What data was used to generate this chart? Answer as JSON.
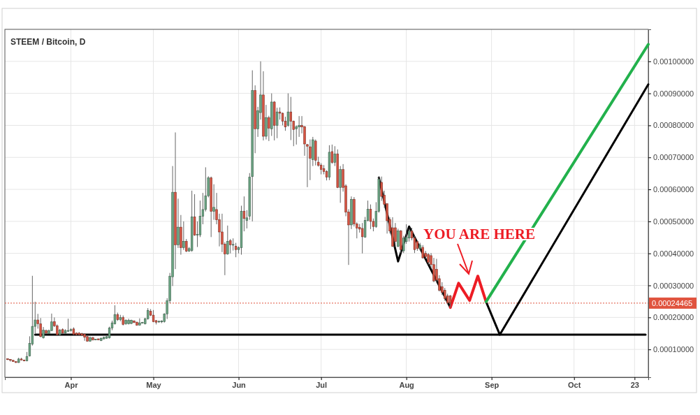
{
  "chart_data": {
    "type": "candlestick",
    "title": "STEEM / Bitcoin, D",
    "x": [
      "--03-09",
      "--03-10",
      "--03-11",
      "--03-12",
      "--03-13",
      "--03-14",
      "--03-15",
      "--03-16",
      "--03-17",
      "--03-18",
      "--03-19",
      "--03-20",
      "--03-21",
      "--03-22",
      "--03-23",
      "--03-24",
      "--03-25",
      "--03-26",
      "--03-27",
      "--03-28",
      "--03-29",
      "--03-30",
      "--03-31",
      "--04-01",
      "--04-02",
      "--04-03",
      "--04-04",
      "--04-05",
      "--04-06",
      "--04-07",
      "--04-08",
      "--04-09",
      "--04-10",
      "--04-11",
      "--04-12",
      "--04-13",
      "--04-14",
      "--04-15",
      "--04-16",
      "--04-17",
      "--04-18",
      "--04-19",
      "--04-20",
      "--04-21",
      "--04-22",
      "--04-23",
      "--04-24",
      "--04-25",
      "--04-26",
      "--04-27",
      "--04-28",
      "--04-29",
      "--04-30",
      "--05-01",
      "--05-02",
      "--05-03",
      "--05-04",
      "--05-05",
      "--05-06",
      "--05-07",
      "--05-08",
      "--05-09",
      "--05-10",
      "--05-11",
      "--05-12",
      "--05-13",
      "--05-14",
      "--05-15",
      "--05-16",
      "--05-17",
      "--05-18",
      "--05-19",
      "--05-20",
      "--05-21",
      "--05-22",
      "--05-23",
      "--05-24",
      "--05-25",
      "--05-26",
      "--05-27",
      "--05-28",
      "--05-29",
      "--05-30",
      "--05-31",
      "--06-01",
      "--06-02",
      "--06-03",
      "--06-04",
      "--06-05",
      "--06-06",
      "--06-07",
      "--06-08",
      "--06-09",
      "--06-10",
      "--06-11",
      "--06-12",
      "--06-13",
      "--06-14",
      "--06-15",
      "--06-16",
      "--06-17",
      "--06-18",
      "--06-19",
      "--06-20",
      "--06-21",
      "--06-22",
      "--06-23",
      "--06-24",
      "--06-25",
      "--06-26",
      "--06-27",
      "--06-28",
      "--06-29",
      "--06-30",
      "--07-01",
      "--07-02",
      "--07-03",
      "--07-04",
      "--07-05",
      "--07-06",
      "--07-07",
      "--07-08",
      "--07-09",
      "--07-10",
      "--07-11",
      "--07-12",
      "--07-13",
      "--07-14",
      "--07-15",
      "--07-16",
      "--07-17",
      "--07-18",
      "--07-19",
      "--07-20",
      "--07-21",
      "--07-22",
      "--07-23",
      "--07-24",
      "--07-25",
      "--07-26",
      "--07-27",
      "--07-28",
      "--07-29",
      "--07-30",
      "--07-31",
      "--08-01",
      "--08-02",
      "--08-03",
      "--08-04",
      "--08-05",
      "--08-06",
      "--08-07",
      "--08-08",
      "--08-09",
      "--08-10",
      "--08-11",
      "--08-12",
      "--08-13",
      "--08-14",
      "--08-15",
      "--08-16",
      "--08-17"
    ],
    "ohlc": [
      [
        7.1e-05,
        7.2e-05,
        6.7e-05,
        6.8e-05
      ],
      [
        6.9e-05,
        7e-05,
        6.2e-05,
        6.6e-05
      ],
      [
        6.6e-05,
        6.7e-05,
        6.1e-05,
        6.2e-05
      ],
      [
        6.2e-05,
        6.3e-05,
        5.8e-05,
        5.9e-05
      ],
      [
        5.9e-05,
        7.4e-05,
        5.8e-05,
        7e-05
      ],
      [
        7e-05,
        7.4e-05,
        6.6e-05,
        6.7e-05
      ],
      [
        6.7e-05,
        6.8e-05,
        6.3e-05,
        6.4e-05
      ],
      [
        6.4e-05,
        9.2e-05,
        6.3e-05,
        7.8e-05
      ],
      [
        8e-05,
        0.000141,
        7.8e-05,
        0.000119
      ],
      [
        0.000117,
        0.00033,
        0.000112,
        0.000172
      ],
      [
        0.000172,
        0.000249,
        0.000149,
        0.000192
      ],
      [
        0.000192,
        0.000211,
        0.000165,
        0.00018
      ],
      [
        0.00018,
        0.000198,
        0.000138,
        0.00014
      ],
      [
        0.000136,
        0.00017,
        0.000134,
        0.00016
      ],
      [
        0.000159,
        0.000162,
        0.000149,
        0.000151
      ],
      [
        0.00015,
        0.000162,
        0.000148,
        0.000159
      ],
      [
        0.000159,
        0.000212,
        0.000157,
        0.000186
      ],
      [
        0.000187,
        0.0002,
        0.00017,
        0.000174
      ],
      [
        0.000174,
        0.000178,
        0.000142,
        0.000146
      ],
      [
        0.000146,
        0.000164,
        0.000144,
        0.00016
      ],
      [
        0.000162,
        0.000166,
        0.000148,
        0.000151
      ],
      [
        0.000151,
        0.000163,
        0.000149,
        0.000159
      ],
      [
        0.000158,
        0.000196,
        0.000155,
        0.000159
      ],
      [
        0.000159,
        0.000166,
        0.000156,
        0.000162
      ],
      [
        0.000164,
        0.000169,
        0.000145,
        0.000147
      ],
      [
        0.000151,
        0.000153,
        0.000143,
        0.000146
      ],
      [
        0.000151,
        0.000154,
        0.000143,
        0.000146
      ],
      [
        0.000149,
        0.000152,
        0.000142,
        0.000144
      ],
      [
        0.000148,
        0.00015,
        0.000127,
        0.000138
      ],
      [
        0.00014,
        0.000142,
        0.000124,
        0.000126
      ],
      [
        0.000126,
        0.00014,
        0.000124,
        0.000137
      ],
      [
        0.000137,
        0.000139,
        0.000128,
        0.00013
      ],
      [
        0.000131,
        0.000133,
        0.000129,
        0.000132
      ],
      [
        0.000133,
        0.000134,
        0.000129,
        0.00013
      ],
      [
        0.000128,
        0.000137,
        0.000126,
        0.000135
      ],
      [
        0.000133,
        0.00014,
        0.000131,
        0.000138
      ],
      [
        0.000135,
        0.000141,
        0.000133,
        0.00014
      ],
      [
        0.000136,
        0.000171,
        0.000134,
        0.000167
      ],
      [
        0.000167,
        0.00019,
        0.00016,
        0.000183
      ],
      [
        0.00018,
        0.000238,
        0.000178,
        0.000209
      ],
      [
        0.000209,
        0.000215,
        0.000189,
        0.000193
      ],
      [
        0.000193,
        0.000208,
        0.000188,
        0.0002
      ],
      [
        0.0002,
        0.000206,
        0.000175,
        0.000178
      ],
      [
        0.00018,
        0.000194,
        0.000177,
        0.000191
      ],
      [
        0.00018,
        0.000196,
        0.000178,
        0.000191
      ],
      [
        0.000181,
        0.000193,
        0.000179,
        0.000191
      ],
      [
        0.000189,
        0.000191,
        0.000182,
        0.000184
      ],
      [
        0.000185,
        0.000187,
        0.000174,
        0.000176
      ],
      [
        0.000176,
        0.000197,
        0.000175,
        0.000183
      ],
      [
        0.000183,
        0.000186,
        0.000181,
        0.000184
      ],
      [
        0.00018,
        0.000199,
        0.000178,
        0.000196
      ],
      [
        0.000196,
        0.000229,
        0.000193,
        0.000222
      ],
      [
        0.000219,
        0.000226,
        0.000204,
        0.000207
      ],
      [
        0.000207,
        0.000223,
        0.000185,
        0.000187
      ],
      [
        0.00019,
        0.000192,
        0.000178,
        0.000185
      ],
      [
        0.000187,
        0.00019,
        0.000183,
        0.000188
      ],
      [
        0.000186,
        0.000191,
        0.000182,
        0.000189
      ],
      [
        0.000187,
        0.000213,
        0.000184,
        0.000211
      ],
      [
        0.000211,
        0.00026,
        0.000195,
        0.000252
      ],
      [
        0.000252,
        0.000339,
        0.000244,
        0.000329
      ],
      [
        0.000327,
        0.000673,
        0.000298,
        0.000591
      ],
      [
        0.000591,
        0.000778,
        0.000351,
        0.000427
      ],
      [
        0.000427,
        0.000571,
        0.000417,
        0.000482
      ],
      [
        0.000482,
        0.00052,
        0.000396,
        0.000418
      ],
      [
        0.000418,
        0.0005,
        0.000411,
        0.000438
      ],
      [
        0.000438,
        0.000445,
        0.000404,
        0.000407
      ],
      [
        0.000407,
        0.00042,
        0.000405,
        0.000415
      ],
      [
        0.000409,
        0.000596,
        0.000405,
        0.000514
      ],
      [
        0.000514,
        0.000585,
        0.000455,
        0.000457
      ],
      [
        0.000457,
        0.0005,
        0.00042,
        0.000459
      ],
      [
        0.000458,
        0.000565,
        0.000451,
        0.000516
      ],
      [
        0.000516,
        0.000589,
        0.000491,
        0.000537
      ],
      [
        0.000537,
        0.000669,
        0.000531,
        0.00058
      ],
      [
        0.00058,
        0.000641,
        0.000575,
        0.000636
      ],
      [
        0.000636,
        0.00064,
        0.000451,
        0.000531
      ],
      [
        0.000531,
        0.000616,
        0.000505,
        0.000544
      ],
      [
        0.000537,
        0.000589,
        0.000491,
        0.000505
      ],
      [
        0.000505,
        0.000524,
        0.000422,
        0.000467
      ],
      [
        0.000467,
        0.000524,
        0.000404,
        0.000429
      ],
      [
        0.000429,
        0.000435,
        0.000332,
        0.000398
      ],
      [
        0.000398,
        0.000487,
        0.000396,
        0.000438
      ],
      [
        0.00044,
        0.000445,
        0.0004,
        0.000427
      ],
      [
        0.000427,
        0.000447,
        0.000409,
        0.000428
      ],
      [
        0.000422,
        0.000433,
        0.000388,
        0.000412
      ],
      [
        0.000412,
        0.000422,
        0.0004,
        0.000418
      ],
      [
        0.000418,
        0.000549,
        0.000396,
        0.000532
      ],
      [
        0.000532,
        0.000578,
        0.000469,
        0.000509
      ],
      [
        0.000503,
        0.000535,
        0.000478,
        0.000511
      ],
      [
        0.000516,
        0.000651,
        0.000505,
        0.000638
      ],
      [
        0.00064,
        0.000972,
        0.0005,
        0.000909
      ],
      [
        0.000909,
        0.000925,
        0.000713,
        0.000789
      ],
      [
        0.000789,
        0.000858,
        0.000764,
        0.000846
      ],
      [
        0.00084,
        0.001,
        0.000818,
        0.000895
      ],
      [
        0.000895,
        0.000969,
        0.000753,
        0.000766
      ],
      [
        0.000766,
        0.000864,
        0.000756,
        0.000824
      ],
      [
        0.000824,
        0.00083,
        0.000751,
        0.000791
      ],
      [
        0.000789,
        0.0009,
        0.000767,
        0.000873
      ],
      [
        0.000873,
        0.000876,
        0.000753,
        0.0008
      ],
      [
        0.0008,
        0.000855,
        0.00076,
        0.000842
      ],
      [
        0.000842,
        0.000856,
        0.000818,
        0.000838
      ],
      [
        0.000838,
        0.00084,
        0.0008,
        0.000813
      ],
      [
        0.000813,
        0.000827,
        0.000783,
        0.000795
      ],
      [
        0.0008,
        0.0009,
        0.000796,
        0.000842
      ],
      [
        0.000842,
        0.000889,
        0.000754,
        0.000813
      ],
      [
        0.000813,
        0.000815,
        0.000735,
        0.000787
      ],
      [
        0.000789,
        0.0008,
        0.00074,
        0.000796
      ],
      [
        0.000795,
        0.000829,
        0.000764,
        0.0008
      ],
      [
        0.0008,
        0.000829,
        0.000775,
        0.000795
      ],
      [
        0.000796,
        0.000798,
        0.000705,
        0.000742
      ],
      [
        0.00074,
        0.000742,
        0.000607,
        0.000735
      ],
      [
        0.000733,
        0.000756,
        0.000629,
        0.000697
      ],
      [
        0.000693,
        0.000764,
        0.000673,
        0.000755
      ],
      [
        0.000751,
        0.000756,
        0.000675,
        0.000691
      ],
      [
        0.000685,
        0.000702,
        0.000671,
        0.000675
      ],
      [
        0.000676,
        0.000682,
        0.000647,
        0.000662
      ],
      [
        0.000665,
        0.000676,
        0.000647,
        0.000656
      ],
      [
        0.000656,
        0.00066,
        0.000628,
        0.000638
      ],
      [
        0.000638,
        0.000738,
        0.000629,
        0.000716
      ],
      [
        0.000718,
        0.00074,
        0.00068,
        0.000684
      ],
      [
        0.000684,
        0.000735,
        0.000673,
        0.000711
      ],
      [
        0.000711,
        0.000725,
        0.000604,
        0.000606
      ],
      [
        0.000606,
        0.000673,
        0.000558,
        0.000662
      ],
      [
        0.000662,
        0.000679,
        0.000593,
        0.000606
      ],
      [
        0.000611,
        0.000616,
        0.000516,
        0.000529
      ],
      [
        0.000529,
        0.000538,
        0.000364,
        0.000489
      ],
      [
        0.000489,
        0.000578,
        0.000476,
        0.000569
      ],
      [
        0.000569,
        0.000576,
        0.000484,
        0.000492
      ],
      [
        0.000492,
        0.000497,
        0.000447,
        0.000479
      ],
      [
        0.000481,
        0.000492,
        0.000465,
        0.000476
      ],
      [
        0.000478,
        0.000495,
        0.0004,
        0.000452
      ],
      [
        0.000451,
        0.000514,
        0.000449,
        0.000503
      ],
      [
        0.000503,
        0.000565,
        0.0005,
        0.000538
      ],
      [
        0.000538,
        0.000553,
        0.000476,
        0.0005
      ],
      [
        0.0005,
        0.000509,
        0.000469,
        0.000484
      ],
      [
        0.000484,
        0.00056,
        0.00048,
        0.000531
      ],
      [
        0.000531,
        0.00064,
        0.000527,
        0.000632
      ],
      [
        0.000622,
        0.00064,
        0.000564,
        0.000578
      ],
      [
        0.000582,
        0.000596,
        0.000542,
        0.000553
      ],
      [
        0.000555,
        0.000556,
        0.000462,
        0.000502
      ],
      [
        0.000506,
        0.000513,
        0.000462,
        0.00047
      ],
      [
        0.00048,
        0.000513,
        0.00042,
        0.000422
      ],
      [
        0.00048,
        0.000495,
        0.000419,
        0.000437
      ],
      [
        0.000422,
        0.000477,
        0.000419,
        0.00047
      ],
      [
        0.00047,
        0.000473,
        0.000401,
        0.000412
      ],
      [
        0.000408,
        0.000455,
        0.000401,
        0.000448
      ],
      [
        0.000437,
        0.000491,
        0.00043,
        0.000451
      ],
      [
        0.000448,
        0.000477,
        0.000437,
        0.00047
      ],
      [
        0.00047,
        0.00048,
        0.000441,
        0.000448
      ],
      [
        0.000448,
        0.000455,
        0.000401,
        0.000412
      ],
      [
        0.000437,
        0.000441,
        0.000408,
        0.000415
      ],
      [
        0.000415,
        0.000433,
        0.000408,
        0.000426
      ],
      [
        0.000419,
        0.000426,
        0.000384,
        0.000386
      ],
      [
        0.000401,
        0.000408,
        0.000383,
        0.00039
      ],
      [
        0.000397,
        0.000401,
        0.000365,
        0.000372
      ],
      [
        0.000393,
        0.000401,
        0.000354,
        0.000365
      ],
      [
        0.000365,
        0.000386,
        0.00031,
        0.000314
      ],
      [
        0.00035,
        0.000383,
        0.00031,
        0.000317
      ],
      [
        0.000321,
        0.000332,
        0.000281,
        0.000285
      ],
      [
        0.000296,
        0.00031,
        0.00027,
        0.000278
      ],
      [
        0.000285,
        0.000292,
        0.000252,
        0.000259
      ],
      [
        0.000267,
        0.000274,
        0.000241,
        0.000245
      ],
      [
        0.000267,
        0.00027,
        0.00023,
        0.00024465
      ]
    ],
    "colors": [
      "#d75442",
      "#d75442",
      "#d75442",
      "#d75442",
      "#6ba583",
      "#d75442",
      "#d75442",
      "#6ba583",
      "#6ba583",
      "#6ba583",
      "#6ba583",
      "#d75442",
      "#d75442",
      "#6ba583",
      "#d75442",
      "#6ba583",
      "#6ba583",
      "#d75442",
      "#d75442",
      "#6ba583",
      "#d75442",
      "#6ba583",
      "#6ba583",
      "#6ba583",
      "#d75442",
      "#d75442",
      "#d75442",
      "#d75442",
      "#d75442",
      "#d75442",
      "#6ba583",
      "#d75442",
      "#6ba583",
      "#d75442",
      "#6ba583",
      "#6ba583",
      "#6ba583",
      "#6ba583",
      "#6ba583",
      "#6ba583",
      "#d75442",
      "#6ba583",
      "#d75442",
      "#6ba583",
      "#6ba583",
      "#6ba583",
      "#d75442",
      "#d75442",
      "#6ba583",
      "#6ba583",
      "#6ba583",
      "#6ba583",
      "#d75442",
      "#d75442",
      "#d75442",
      "#6ba583",
      "#6ba583",
      "#6ba583",
      "#6ba583",
      "#6ba583",
      "#6ba583",
      "#d75442",
      "#6ba583",
      "#d75442",
      "#6ba583",
      "#d75442",
      "#6ba583",
      "#6ba583",
      "#d75442",
      "#6ba583",
      "#6ba583",
      "#6ba583",
      "#6ba583",
      "#6ba583",
      "#d75442",
      "#6ba583",
      "#d75442",
      "#d75442",
      "#d75442",
      "#d75442",
      "#6ba583",
      "#d75442",
      "#6ba583",
      "#d75442",
      "#6ba583",
      "#6ba583",
      "#d75442",
      "#6ba583",
      "#6ba583",
      "#6ba583",
      "#d75442",
      "#6ba583",
      "#6ba583",
      "#d75442",
      "#6ba583",
      "#d75442",
      "#6ba583",
      "#d75442",
      "#6ba583",
      "#d75442",
      "#d75442",
      "#d75442",
      "#6ba583",
      "#d75442",
      "#d75442",
      "#6ba583",
      "#6ba583",
      "#d75442",
      "#d75442",
      "#d75442",
      "#d75442",
      "#6ba583",
      "#d75442",
      "#d75442",
      "#d75442",
      "#d75442",
      "#d75442",
      "#6ba583",
      "#d75442",
      "#6ba583",
      "#d75442",
      "#6ba583",
      "#d75442",
      "#d75442",
      "#d75442",
      "#6ba583",
      "#d75442",
      "#d75442",
      "#d75442",
      "#d75442",
      "#6ba583",
      "#6ba583",
      "#d75442",
      "#d75442",
      "#6ba583",
      "#6ba583",
      "#d75442",
      "#d75442",
      "#d75442",
      "#d75442",
      "#d75442",
      "#d75442",
      "#6ba583",
      "#d75442",
      "#6ba583",
      "#6ba583",
      "#6ba583",
      "#d75442",
      "#d75442",
      "#d75442",
      "#6ba583",
      "#d75442",
      "#d75442",
      "#d75442",
      "#d75442",
      "#d75442",
      "#d75442",
      "#d75442",
      "#d75442",
      "#d75442",
      "#d75442",
      "#d75442"
    ],
    "series": [
      {
        "type": "line",
        "color": "#000000",
        "x": [
          "--03-19",
          "--10-27"
        ],
        "values": [
          0.000146,
          0.000146
        ]
      },
      {
        "type": "line",
        "color": "#000000",
        "x": [
          "--07-22",
          "--07-29",
          "--08-02",
          "--08-17"
        ],
        "values": [
          0.000637,
          0.000375,
          0.000484,
          0.000231
        ]
      },
      {
        "type": "line",
        "color": "#000000",
        "x": [
          "--08-30",
          "--09-04",
          "--10-28"
        ],
        "values": [
          0.000249,
          0.000146,
          0.000928
        ]
      },
      {
        "type": "line",
        "color": "#ed1c24",
        "x": [
          "--08-17",
          "--08-20",
          "--08-24",
          "--08-27",
          "--08-30"
        ],
        "values": [
          0.000231,
          0.000307,
          0.000253,
          0.000329,
          0.000249
        ]
      },
      {
        "type": "line",
        "color": "#22b14c",
        "x": [
          "--08-30",
          "--10-28"
        ],
        "values": [
          0.000249,
          0.001053
        ]
      }
    ],
    "xlim": [
      "--03-08",
      "--10-28"
    ],
    "xticks": [
      {
        "value": "--04-01",
        "label": "Apr"
      },
      {
        "value": "--05-01",
        "label": "May"
      },
      {
        "value": "--06-01",
        "label": "Jun"
      },
      {
        "value": "--07-01",
        "label": "Jul"
      },
      {
        "value": "--08-01",
        "label": "Aug"
      },
      {
        "value": "--09-01",
        "label": "Sep"
      },
      {
        "value": "--10-01",
        "label": "Oct"
      },
      {
        "value": "--10-23",
        "label": "23"
      }
    ],
    "ylim": [
      1.3e-05,
      0.0011
    ],
    "yticks": [
      {
        "value": 0.0001,
        "label": "0.00010000"
      },
      {
        "value": 0.0002,
        "label": "0.00020000"
      },
      {
        "value": 0.0003,
        "label": "0.00030000"
      },
      {
        "value": 0.0004,
        "label": "0.00040000"
      },
      {
        "value": 0.0005,
        "label": "0.00050000"
      },
      {
        "value": 0.0006,
        "label": "0.00060000"
      },
      {
        "value": 0.0007,
        "label": "0.00070000"
      },
      {
        "value": 0.0008,
        "label": "0.00080000"
      },
      {
        "value": 0.0009,
        "label": "0.00090000"
      },
      {
        "value": 0.001,
        "label": "0.00100000"
      }
    ],
    "grid": true,
    "ref_lines": [
      {
        "axis": "y",
        "value": 0.00024465,
        "label": "0.00024465",
        "color": "#e0533e",
        "line_style": "dotted"
      }
    ],
    "annotations": [
      "YOU ARE HERE"
    ]
  }
}
